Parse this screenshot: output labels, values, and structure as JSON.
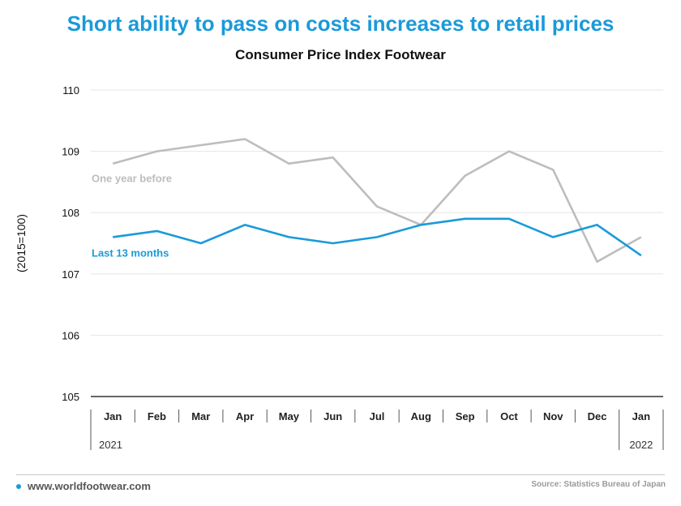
{
  "header": {
    "headline": "Short ability to pass on costs increases to retail prices",
    "subtitle": "Consumer Price Index Footwear"
  },
  "footer": {
    "site": "www.worldfootwear.com",
    "source": "Source: Statistics Bureau of Japan"
  },
  "colors": {
    "accent": "#1a9ad9",
    "previous_series": "#bdbdbd",
    "grid": "#e6e6e6",
    "axis": "#333333"
  },
  "chart_data": {
    "type": "line",
    "title": "Consumer Price Index Footwear",
    "ylabel": "(2015=100)",
    "xlabel": "",
    "categories": [
      "Jan",
      "Feb",
      "Mar",
      "Apr",
      "May",
      "Jun",
      "Jul",
      "Aug",
      "Sep",
      "Oct",
      "Nov",
      "Dec",
      "Jan"
    ],
    "year_labels": [
      "2021",
      "2022"
    ],
    "ylim": [
      105,
      110
    ],
    "yticks": [
      105,
      106,
      107,
      108,
      109,
      110
    ],
    "grid": true,
    "series": [
      {
        "name": "One year before",
        "color": "#bdbdbd",
        "values": [
          108.8,
          109.0,
          109.1,
          109.2,
          108.8,
          108.9,
          108.1,
          107.8,
          108.6,
          109.0,
          108.7,
          107.2,
          107.6
        ]
      },
      {
        "name": "Last 13 months",
        "color": "#1a9ad9",
        "values": [
          107.6,
          107.7,
          107.5,
          107.8,
          107.6,
          107.5,
          107.6,
          107.8,
          107.9,
          107.9,
          107.6,
          107.8,
          107.3
        ]
      }
    ]
  }
}
